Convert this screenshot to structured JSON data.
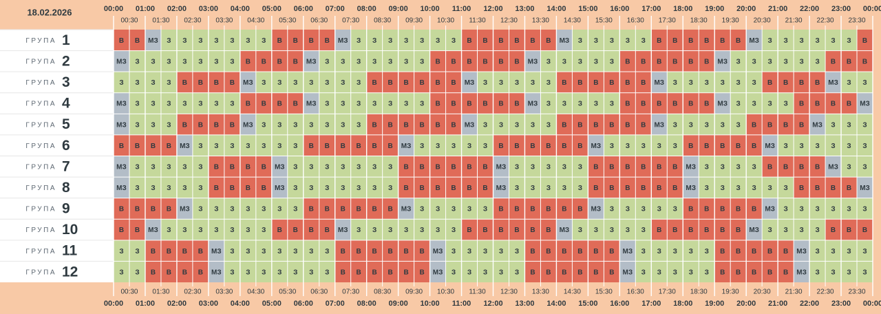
{
  "date": "18.02.2026",
  "hours": [
    "00:00",
    "01:00",
    "02:00",
    "03:00",
    "04:00",
    "05:00",
    "06:00",
    "07:00",
    "08:00",
    "09:00",
    "10:00",
    "11:00",
    "12:00",
    "13:00",
    "14:00",
    "15:00",
    "16:00",
    "17:00",
    "18:00",
    "19:00",
    "20:00",
    "21:00",
    "22:00",
    "23:00",
    "00:00"
  ],
  "half_hours": [
    "00:30",
    "01:30",
    "02:30",
    "03:30",
    "04:30",
    "05:30",
    "06:30",
    "07:30",
    "08:30",
    "09:30",
    "10:30",
    "11:30",
    "12:30",
    "13:30",
    "14:30",
    "15:30",
    "16:30",
    "17:30",
    "18:30",
    "19:30",
    "20:30",
    "21:30",
    "22:30",
    "23:30"
  ],
  "cell_colors": {
    "В": "#e06b58",
    "З": "#c5d89b",
    "МЗ": "#b3bdc7"
  },
  "groups": [
    {
      "label": "ГРУПА",
      "number": "1",
      "cells": [
        "В",
        "В",
        "МЗ",
        "З",
        "З",
        "З",
        "З",
        "З",
        "З",
        "З",
        "В",
        "В",
        "В",
        "В",
        "МЗ",
        "З",
        "З",
        "З",
        "З",
        "З",
        "З",
        "З",
        "В",
        "В",
        "В",
        "В",
        "В",
        "В",
        "МЗ",
        "З",
        "З",
        "З",
        "З",
        "З",
        "В",
        "В",
        "В",
        "В",
        "В",
        "В",
        "МЗ",
        "З",
        "З",
        "З",
        "З",
        "З",
        "З",
        "В"
      ]
    },
    {
      "label": "ГРУПА",
      "number": "2",
      "cells": [
        "МЗ",
        "З",
        "З",
        "З",
        "З",
        "З",
        "З",
        "З",
        "В",
        "В",
        "В",
        "В",
        "МЗ",
        "З",
        "З",
        "З",
        "З",
        "З",
        "З",
        "З",
        "В",
        "В",
        "В",
        "В",
        "В",
        "В",
        "МЗ",
        "З",
        "З",
        "З",
        "З",
        "З",
        "В",
        "В",
        "В",
        "В",
        "В",
        "В",
        "МЗ",
        "З",
        "З",
        "З",
        "З",
        "З",
        "З",
        "В",
        "В",
        "В"
      ]
    },
    {
      "label": "ГРУПА",
      "number": "3",
      "cells": [
        "З",
        "З",
        "З",
        "З",
        "В",
        "В",
        "В",
        "В",
        "МЗ",
        "З",
        "З",
        "З",
        "З",
        "З",
        "З",
        "З",
        "В",
        "В",
        "В",
        "В",
        "В",
        "В",
        "МЗ",
        "З",
        "З",
        "З",
        "З",
        "З",
        "В",
        "В",
        "В",
        "В",
        "В",
        "В",
        "МЗ",
        "З",
        "З",
        "З",
        "З",
        "З",
        "З",
        "В",
        "В",
        "В",
        "В",
        "МЗ",
        "З",
        "З"
      ]
    },
    {
      "label": "ГРУПА",
      "number": "4",
      "cells": [
        "МЗ",
        "З",
        "З",
        "З",
        "З",
        "З",
        "З",
        "З",
        "В",
        "В",
        "В",
        "В",
        "МЗ",
        "З",
        "З",
        "З",
        "З",
        "З",
        "З",
        "З",
        "В",
        "В",
        "В",
        "В",
        "В",
        "В",
        "МЗ",
        "З",
        "З",
        "З",
        "З",
        "З",
        "В",
        "В",
        "В",
        "В",
        "В",
        "В",
        "МЗ",
        "З",
        "З",
        "З",
        "З",
        "В",
        "В",
        "В",
        "В",
        "МЗ"
      ]
    },
    {
      "label": "ГРУПА",
      "number": "5",
      "cells": [
        "МЗ",
        "З",
        "З",
        "З",
        "В",
        "В",
        "В",
        "В",
        "МЗ",
        "З",
        "З",
        "З",
        "З",
        "З",
        "З",
        "З",
        "В",
        "В",
        "В",
        "В",
        "В",
        "В",
        "МЗ",
        "З",
        "З",
        "З",
        "З",
        "З",
        "В",
        "В",
        "В",
        "В",
        "В",
        "В",
        "МЗ",
        "З",
        "З",
        "З",
        "З",
        "З",
        "В",
        "В",
        "В",
        "В",
        "МЗ",
        "З",
        "З",
        "З"
      ]
    },
    {
      "label": "ГРУПА",
      "number": "6",
      "cells": [
        "В",
        "В",
        "В",
        "В",
        "МЗ",
        "З",
        "З",
        "З",
        "З",
        "З",
        "З",
        "З",
        "В",
        "В",
        "В",
        "В",
        "В",
        "В",
        "МЗ",
        "З",
        "З",
        "З",
        "З",
        "З",
        "В",
        "В",
        "В",
        "В",
        "В",
        "В",
        "МЗ",
        "З",
        "З",
        "З",
        "З",
        "З",
        "В",
        "В",
        "В",
        "В",
        "В",
        "МЗ",
        "З",
        "З",
        "З",
        "З",
        "З",
        "З"
      ]
    },
    {
      "label": "ГРУПА",
      "number": "7",
      "cells": [
        "МЗ",
        "З",
        "З",
        "З",
        "З",
        "З",
        "В",
        "В",
        "В",
        "В",
        "МЗ",
        "З",
        "З",
        "З",
        "З",
        "З",
        "З",
        "З",
        "В",
        "В",
        "В",
        "В",
        "В",
        "В",
        "МЗ",
        "З",
        "З",
        "З",
        "З",
        "З",
        "В",
        "В",
        "В",
        "В",
        "В",
        "В",
        "МЗ",
        "З",
        "З",
        "З",
        "З",
        "В",
        "В",
        "В",
        "В",
        "МЗ",
        "З",
        "З"
      ]
    },
    {
      "label": "ГРУПА",
      "number": "8",
      "cells": [
        "МЗ",
        "З",
        "З",
        "З",
        "З",
        "З",
        "В",
        "В",
        "В",
        "В",
        "МЗ",
        "З",
        "З",
        "З",
        "З",
        "З",
        "З",
        "З",
        "В",
        "В",
        "В",
        "В",
        "В",
        "В",
        "МЗ",
        "З",
        "З",
        "З",
        "З",
        "З",
        "В",
        "В",
        "В",
        "В",
        "В",
        "В",
        "МЗ",
        "З",
        "З",
        "З",
        "З",
        "З",
        "З",
        "В",
        "В",
        "В",
        "В",
        "МЗ"
      ]
    },
    {
      "label": "ГРУПА",
      "number": "9",
      "cells": [
        "В",
        "В",
        "В",
        "В",
        "МЗ",
        "З",
        "З",
        "З",
        "З",
        "З",
        "З",
        "З",
        "В",
        "В",
        "В",
        "В",
        "В",
        "В",
        "МЗ",
        "З",
        "З",
        "З",
        "З",
        "З",
        "В",
        "В",
        "В",
        "В",
        "В",
        "В",
        "МЗ",
        "З",
        "З",
        "З",
        "З",
        "З",
        "В",
        "В",
        "В",
        "В",
        "В",
        "МЗ",
        "З",
        "З",
        "З",
        "З",
        "З",
        "З"
      ]
    },
    {
      "label": "ГРУПА",
      "number": "10",
      "cells": [
        "В",
        "В",
        "МЗ",
        "З",
        "З",
        "З",
        "З",
        "З",
        "З",
        "З",
        "В",
        "В",
        "В",
        "В",
        "МЗ",
        "З",
        "З",
        "З",
        "З",
        "З",
        "З",
        "З",
        "В",
        "В",
        "В",
        "В",
        "В",
        "В",
        "МЗ",
        "З",
        "З",
        "З",
        "З",
        "З",
        "В",
        "В",
        "В",
        "В",
        "В",
        "В",
        "МЗ",
        "З",
        "З",
        "З",
        "З",
        "В",
        "В",
        "В"
      ]
    },
    {
      "label": "ГРУПА",
      "number": "11",
      "cells": [
        "З",
        "З",
        "В",
        "В",
        "В",
        "В",
        "МЗ",
        "З",
        "З",
        "З",
        "З",
        "З",
        "З",
        "З",
        "В",
        "В",
        "В",
        "В",
        "В",
        "В",
        "МЗ",
        "З",
        "З",
        "З",
        "З",
        "З",
        "В",
        "В",
        "В",
        "В",
        "В",
        "В",
        "МЗ",
        "З",
        "З",
        "З",
        "З",
        "З",
        "В",
        "В",
        "В",
        "В",
        "В",
        "МЗ",
        "З",
        "З",
        "З",
        "З"
      ]
    },
    {
      "label": "ГРУПА",
      "number": "12",
      "cells": [
        "З",
        "З",
        "В",
        "В",
        "В",
        "В",
        "МЗ",
        "З",
        "З",
        "З",
        "З",
        "З",
        "З",
        "З",
        "В",
        "В",
        "В",
        "В",
        "В",
        "В",
        "МЗ",
        "З",
        "З",
        "З",
        "З",
        "З",
        "В",
        "В",
        "В",
        "В",
        "В",
        "В",
        "МЗ",
        "З",
        "З",
        "З",
        "З",
        "З",
        "В",
        "В",
        "В",
        "В",
        "В",
        "МЗ",
        "З",
        "З",
        "З",
        "З"
      ]
    }
  ]
}
